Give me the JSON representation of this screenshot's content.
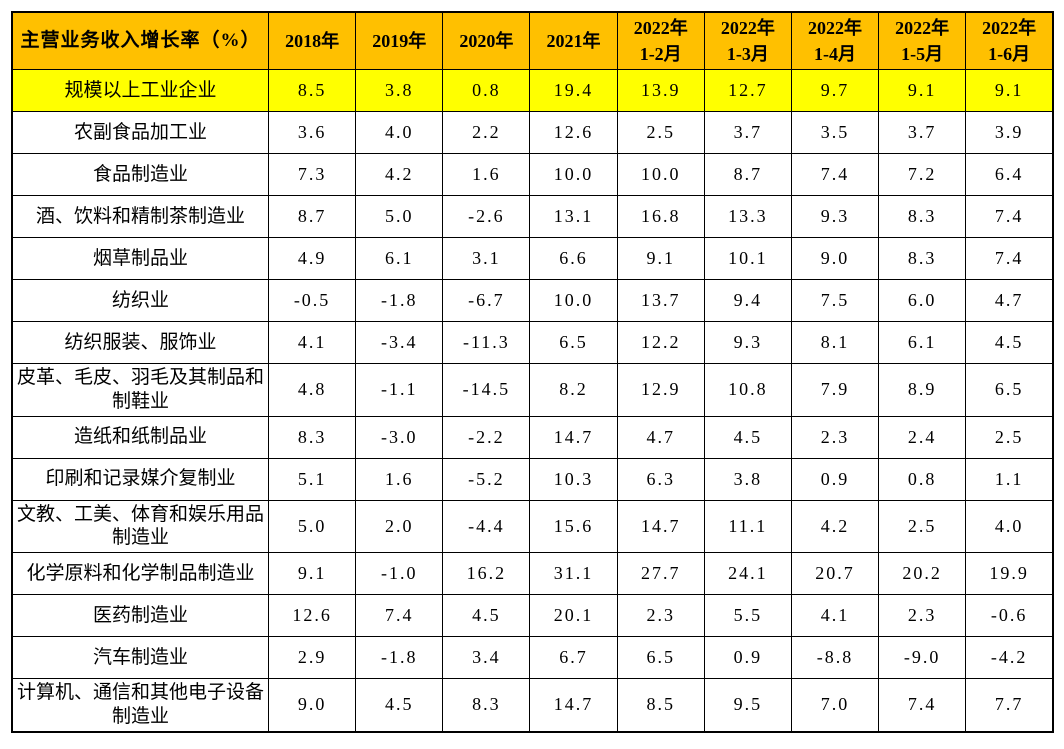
{
  "colors": {
    "header_bg": "#FFC000",
    "highlight_bg": "#FFFF00",
    "border": "#000000",
    "text": "#000000",
    "page_bg": "#FFFFFF"
  },
  "table": {
    "corner_header": "主营业务收入增长率（%）",
    "columns": [
      {
        "top": "2018年",
        "bottom": ""
      },
      {
        "top": "2019年",
        "bottom": ""
      },
      {
        "top": "2020年",
        "bottom": ""
      },
      {
        "top": "2021年",
        "bottom": ""
      },
      {
        "top": "2022年",
        "bottom": "1-2月"
      },
      {
        "top": "2022年",
        "bottom": "1-3月"
      },
      {
        "top": "2022年",
        "bottom": "1-4月"
      },
      {
        "top": "2022年",
        "bottom": "1-5月"
      },
      {
        "top": "2022年",
        "bottom": "1-6月"
      }
    ],
    "rows": [
      {
        "label": "规模以上工业企业",
        "highlighted": true,
        "values": [
          "8.5",
          "3.8",
          "0.8",
          "19.4",
          "13.9",
          "12.7",
          "9.7",
          "9.1",
          "9.1"
        ]
      },
      {
        "label": "农副食品加工业",
        "highlighted": false,
        "values": [
          "3.6",
          "4.0",
          "2.2",
          "12.6",
          "2.5",
          "3.7",
          "3.5",
          "3.7",
          "3.9"
        ]
      },
      {
        "label": "食品制造业",
        "highlighted": false,
        "values": [
          "7.3",
          "4.2",
          "1.6",
          "10.0",
          "10.0",
          "8.7",
          "7.4",
          "7.2",
          "6.4"
        ]
      },
      {
        "label": "酒、饮料和精制茶制造业",
        "highlighted": false,
        "values": [
          "8.7",
          "5.0",
          "-2.6",
          "13.1",
          "16.8",
          "13.3",
          "9.3",
          "8.3",
          "7.4"
        ]
      },
      {
        "label": "烟草制品业",
        "highlighted": false,
        "values": [
          "4.9",
          "6.1",
          "3.1",
          "6.6",
          "9.1",
          "10.1",
          "9.0",
          "8.3",
          "7.4"
        ]
      },
      {
        "label": "纺织业",
        "highlighted": false,
        "values": [
          "-0.5",
          "-1.8",
          "-6.7",
          "10.0",
          "13.7",
          "9.4",
          "7.5",
          "6.0",
          "4.7"
        ]
      },
      {
        "label": "纺织服装、服饰业",
        "highlighted": false,
        "values": [
          "4.1",
          "-3.4",
          "-11.3",
          "6.5",
          "12.2",
          "9.3",
          "8.1",
          "6.1",
          "4.5"
        ]
      },
      {
        "label": "皮革、毛皮、羽毛及其制品和制鞋业",
        "highlighted": false,
        "values": [
          "4.8",
          "-1.1",
          "-14.5",
          "8.2",
          "12.9",
          "10.8",
          "7.9",
          "8.9",
          "6.5"
        ]
      },
      {
        "label": "造纸和纸制品业",
        "highlighted": false,
        "values": [
          "8.3",
          "-3.0",
          "-2.2",
          "14.7",
          "4.7",
          "4.5",
          "2.3",
          "2.4",
          "2.5"
        ]
      },
      {
        "label": "印刷和记录媒介复制业",
        "highlighted": false,
        "values": [
          "5.1",
          "1.6",
          "-5.2",
          "10.3",
          "6.3",
          "3.8",
          "0.9",
          "0.8",
          "1.1"
        ]
      },
      {
        "label": "文教、工美、体育和娱乐用品制造业",
        "highlighted": false,
        "values": [
          "5.0",
          "2.0",
          "-4.4",
          "15.6",
          "14.7",
          "11.1",
          "4.2",
          "2.5",
          "4.0"
        ]
      },
      {
        "label": "化学原料和化学制品制造业",
        "highlighted": false,
        "values": [
          "9.1",
          "-1.0",
          "16.2",
          "31.1",
          "27.7",
          "24.1",
          "20.7",
          "20.2",
          "19.9"
        ]
      },
      {
        "label": "医药制造业",
        "highlighted": false,
        "values": [
          "12.6",
          "7.4",
          "4.5",
          "20.1",
          "2.3",
          "5.5",
          "4.1",
          "2.3",
          "-0.6"
        ]
      },
      {
        "label": "汽车制造业",
        "highlighted": false,
        "values": [
          "2.9",
          "-1.8",
          "3.4",
          "6.7",
          "6.5",
          "0.9",
          "-8.8",
          "-9.0",
          "-4.2"
        ]
      },
      {
        "label": "计算机、通信和其他电子设备制造业",
        "highlighted": false,
        "values": [
          "9.0",
          "4.5",
          "8.3",
          "14.7",
          "8.5",
          "9.5",
          "7.0",
          "7.4",
          "7.7"
        ]
      }
    ]
  },
  "chart_data": {
    "type": "table",
    "title": "主营业务收入增长率（%）",
    "categories": [
      "2018年",
      "2019年",
      "2020年",
      "2021年",
      "2022年1-2月",
      "2022年1-3月",
      "2022年1-4月",
      "2022年1-5月",
      "2022年1-6月"
    ],
    "series": [
      {
        "name": "规模以上工业企业",
        "values": [
          8.5,
          3.8,
          0.8,
          19.4,
          13.9,
          12.7,
          9.7,
          9.1,
          9.1
        ]
      },
      {
        "name": "农副食品加工业",
        "values": [
          3.6,
          4.0,
          2.2,
          12.6,
          2.5,
          3.7,
          3.5,
          3.7,
          3.9
        ]
      },
      {
        "name": "食品制造业",
        "values": [
          7.3,
          4.2,
          1.6,
          10.0,
          10.0,
          8.7,
          7.4,
          7.2,
          6.4
        ]
      },
      {
        "name": "酒、饮料和精制茶制造业",
        "values": [
          8.7,
          5.0,
          -2.6,
          13.1,
          16.8,
          13.3,
          9.3,
          8.3,
          7.4
        ]
      },
      {
        "name": "烟草制品业",
        "values": [
          4.9,
          6.1,
          3.1,
          6.6,
          9.1,
          10.1,
          9.0,
          8.3,
          7.4
        ]
      },
      {
        "name": "纺织业",
        "values": [
          -0.5,
          -1.8,
          -6.7,
          10.0,
          13.7,
          9.4,
          7.5,
          6.0,
          4.7
        ]
      },
      {
        "name": "纺织服装、服饰业",
        "values": [
          4.1,
          -3.4,
          -11.3,
          6.5,
          12.2,
          9.3,
          8.1,
          6.1,
          4.5
        ]
      },
      {
        "name": "皮革、毛皮、羽毛及其制品和制鞋业",
        "values": [
          4.8,
          -1.1,
          -14.5,
          8.2,
          12.9,
          10.8,
          7.9,
          8.9,
          6.5
        ]
      },
      {
        "name": "造纸和纸制品业",
        "values": [
          8.3,
          -3.0,
          -2.2,
          14.7,
          4.7,
          4.5,
          2.3,
          2.4,
          2.5
        ]
      },
      {
        "name": "印刷和记录媒介复制业",
        "values": [
          5.1,
          1.6,
          -5.2,
          10.3,
          6.3,
          3.8,
          0.9,
          0.8,
          1.1
        ]
      },
      {
        "name": "文教、工美、体育和娱乐用品制造业",
        "values": [
          5.0,
          2.0,
          -4.4,
          15.6,
          14.7,
          11.1,
          4.2,
          2.5,
          4.0
        ]
      },
      {
        "name": "化学原料和化学制品制造业",
        "values": [
          9.1,
          -1.0,
          16.2,
          31.1,
          27.7,
          24.1,
          20.7,
          20.2,
          19.9
        ]
      },
      {
        "name": "医药制造业",
        "values": [
          12.6,
          7.4,
          4.5,
          20.1,
          2.3,
          5.5,
          4.1,
          2.3,
          -0.6
        ]
      },
      {
        "name": "汽车制造业",
        "values": [
          2.9,
          -1.8,
          3.4,
          6.7,
          6.5,
          0.9,
          -8.8,
          -9.0,
          -4.2
        ]
      },
      {
        "name": "计算机、通信和其他电子设备制造业",
        "values": [
          9.0,
          4.5,
          8.3,
          14.7,
          8.5,
          9.5,
          7.0,
          7.4,
          7.7
        ]
      }
    ],
    "layout": {
      "header_row_background": "#FFC000",
      "first_data_row_highlight": "#FFFF00",
      "grid": true
    }
  }
}
